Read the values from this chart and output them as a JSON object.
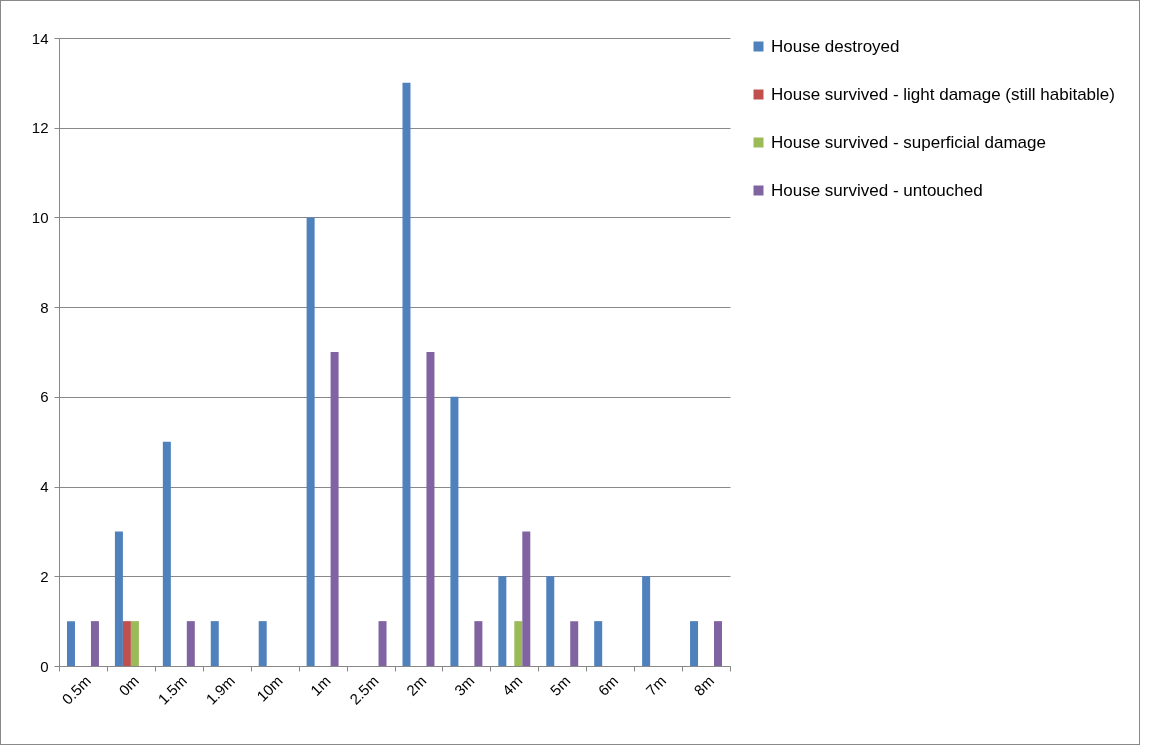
{
  "chart_data": {
    "type": "bar",
    "categories": [
      "0.5m",
      "0m",
      "1.5m",
      "1.9m",
      "10m",
      "1m",
      "2.5m",
      "2m",
      "3m",
      "4m",
      "5m",
      "6m",
      "7m",
      "8m"
    ],
    "series": [
      {
        "name": "House destroyed",
        "color": "#4f81bd",
        "values": [
          1,
          3,
          5,
          1,
          1,
          10,
          0,
          13,
          6,
          2,
          2,
          1,
          2,
          1
        ]
      },
      {
        "name": "House survived - light damage (still habitable)",
        "color": "#c0504d",
        "values": [
          0,
          1,
          0,
          0,
          0,
          0,
          0,
          0,
          0,
          0,
          0,
          0,
          0,
          0
        ]
      },
      {
        "name": "House survived - superficial damage",
        "color": "#9bbb59",
        "values": [
          0,
          1,
          0,
          0,
          0,
          0,
          0,
          0,
          0,
          1,
          0,
          0,
          0,
          0
        ]
      },
      {
        "name": "House survived - untouched",
        "color": "#8064a2",
        "values": [
          1,
          0,
          1,
          0,
          0,
          7,
          1,
          7,
          1,
          3,
          1,
          0,
          0,
          1
        ]
      }
    ],
    "ylim": [
      0,
      14
    ],
    "yticks": [
      0,
      2,
      4,
      6,
      8,
      10,
      12,
      14
    ],
    "grid": "y",
    "legend": "right"
  }
}
